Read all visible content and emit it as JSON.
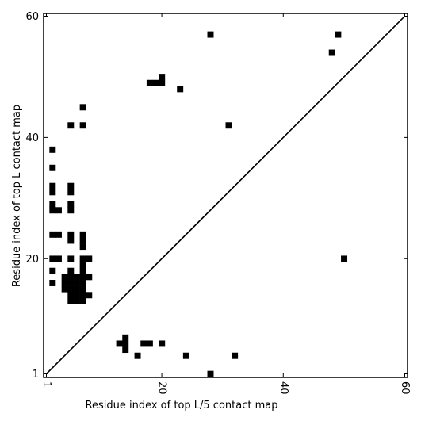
{
  "chart_data": {
    "type": "heatmap",
    "title": "",
    "xlabel": "Residue index of top L/5 contact map",
    "ylabel": "Residue index of top L contact map",
    "xlim": [
      1,
      60
    ],
    "ylim": [
      1,
      60
    ],
    "x_ticks": [
      1,
      20,
      40,
      60
    ],
    "y_ticks": [
      1,
      20,
      40,
      60
    ],
    "x_tick_labels": [
      "1",
      "20",
      "40",
      "60"
    ],
    "y_tick_labels": [
      "1",
      "20",
      "40",
      "60"
    ],
    "x_tick_rotation": -90,
    "diagonal": true,
    "cell_color": "#000000",
    "background_color": "#ffffff",
    "upper_cells": [
      [
        28,
        57
      ],
      [
        49,
        57
      ],
      [
        48,
        54
      ],
      [
        20,
        50
      ],
      [
        18,
        49
      ],
      [
        19,
        49
      ],
      [
        20,
        49
      ],
      [
        23,
        48
      ],
      [
        7,
        45
      ],
      [
        5,
        42
      ],
      [
        7,
        42
      ],
      [
        31,
        42
      ],
      [
        2,
        38
      ],
      [
        2,
        35
      ],
      [
        2,
        32
      ],
      [
        5,
        32
      ],
      [
        2,
        31
      ],
      [
        5,
        31
      ],
      [
        2,
        29
      ],
      [
        5,
        29
      ],
      [
        2,
        28
      ],
      [
        3,
        28
      ],
      [
        5,
        28
      ],
      [
        2,
        24
      ],
      [
        3,
        24
      ],
      [
        5,
        24
      ],
      [
        7,
        24
      ],
      [
        5,
        23
      ],
      [
        7,
        23
      ],
      [
        7,
        22
      ],
      [
        2,
        20
      ],
      [
        3,
        20
      ],
      [
        5,
        20
      ],
      [
        7,
        20
      ],
      [
        8,
        20
      ],
      [
        7,
        19
      ],
      [
        5,
        18
      ],
      [
        7,
        18
      ],
      [
        2,
        18
      ],
      [
        4,
        17
      ],
      [
        5,
        17
      ],
      [
        6,
        17
      ],
      [
        7,
        17
      ],
      [
        8,
        17
      ],
      [
        4,
        16
      ],
      [
        5,
        16
      ],
      [
        6,
        16
      ],
      [
        7,
        16
      ],
      [
        2,
        16
      ],
      [
        4,
        15
      ],
      [
        5,
        15
      ],
      [
        6,
        15
      ],
      [
        7,
        15
      ],
      [
        5,
        14
      ],
      [
        6,
        14
      ],
      [
        7,
        14
      ],
      [
        8,
        14
      ],
      [
        5,
        13
      ],
      [
        6,
        13
      ],
      [
        7,
        13
      ]
    ],
    "lower_cells": [
      [
        14,
        7
      ],
      [
        13,
        6
      ],
      [
        14,
        6
      ],
      [
        17,
        6
      ],
      [
        18,
        6
      ],
      [
        20,
        6
      ],
      [
        14,
        5
      ],
      [
        16,
        4
      ],
      [
        24,
        4
      ],
      [
        32,
        4
      ],
      [
        28,
        1
      ],
      [
        50,
        20
      ]
    ]
  }
}
